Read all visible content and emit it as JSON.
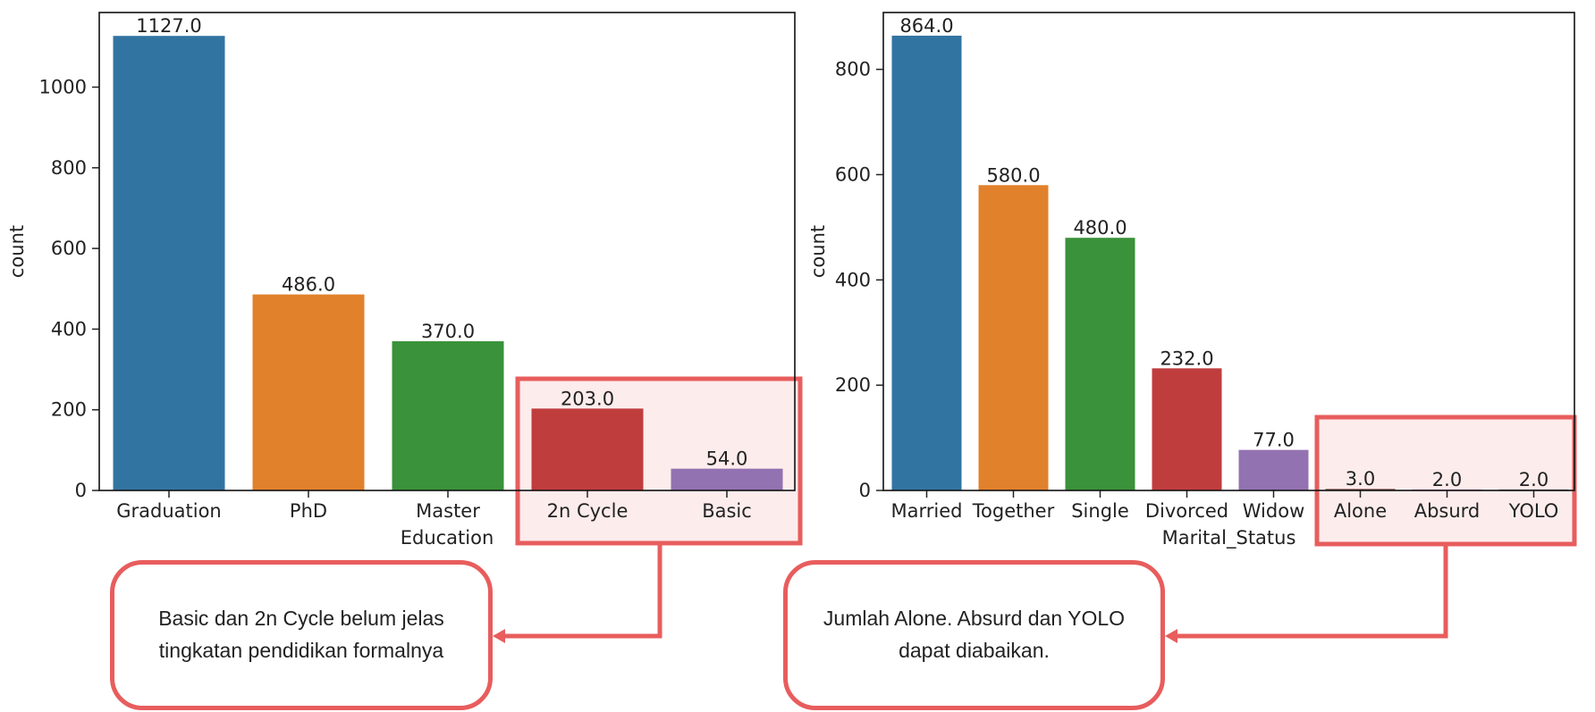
{
  "chart_data": [
    {
      "type": "bar",
      "categories": [
        "Graduation",
        "PhD",
        "Master",
        "2n Cycle",
        "Basic"
      ],
      "values": [
        1127.0,
        486.0,
        370.0,
        203.0,
        54.0
      ],
      "value_labels": [
        "1127.0",
        "486.0",
        "370.0",
        "203.0",
        "54.0"
      ],
      "colors": [
        "#3274a1",
        "#e1812c",
        "#3a923a",
        "#c03d3e",
        "#9372b2"
      ],
      "xlabel": "Education",
      "ylabel": "count",
      "ylim": [
        0,
        1185
      ],
      "yticks": [
        "0",
        "200",
        "400",
        "600",
        "800",
        "1000"
      ],
      "ytick_values": [
        0,
        200,
        400,
        600,
        800,
        1000
      ],
      "highlight_categories": [
        "2n Cycle",
        "Basic"
      ]
    },
    {
      "type": "bar",
      "categories": [
        "Married",
        "Together",
        "Single",
        "Divorced",
        "Widow",
        "Alone",
        "Absurd",
        "YOLO"
      ],
      "values": [
        864.0,
        580.0,
        480.0,
        232.0,
        77.0,
        3.0,
        2.0,
        2.0
      ],
      "value_labels": [
        "864.0",
        "580.0",
        "480.0",
        "232.0",
        "77.0",
        "3.0",
        "2.0",
        "2.0"
      ],
      "colors": [
        "#3274a1",
        "#e1812c",
        "#3a923a",
        "#c03d3e",
        "#9372b2",
        "#845b53",
        "#d684bd",
        "#7f7f7f"
      ],
      "xlabel": "Marital_Status",
      "ylabel": "count",
      "ylim": [
        0,
        908
      ],
      "yticks": [
        "0",
        "200",
        "400",
        "600",
        "800"
      ],
      "ytick_values": [
        0,
        200,
        400,
        600,
        800
      ],
      "highlight_categories": [
        "Alone",
        "Absurd",
        "YOLO"
      ]
    }
  ],
  "annotations": [
    {
      "text_line1": "Basic dan 2n Cycle belum jelas",
      "text_line2": "tingkatan pendidikan formalnya"
    },
    {
      "text_line1": "Jumlah Alone. Absurd dan YOLO",
      "text_line2": "dapat diabaikan."
    }
  ],
  "highlight_color": "#e85d5d",
  "highlight_fill": "#fdecec"
}
